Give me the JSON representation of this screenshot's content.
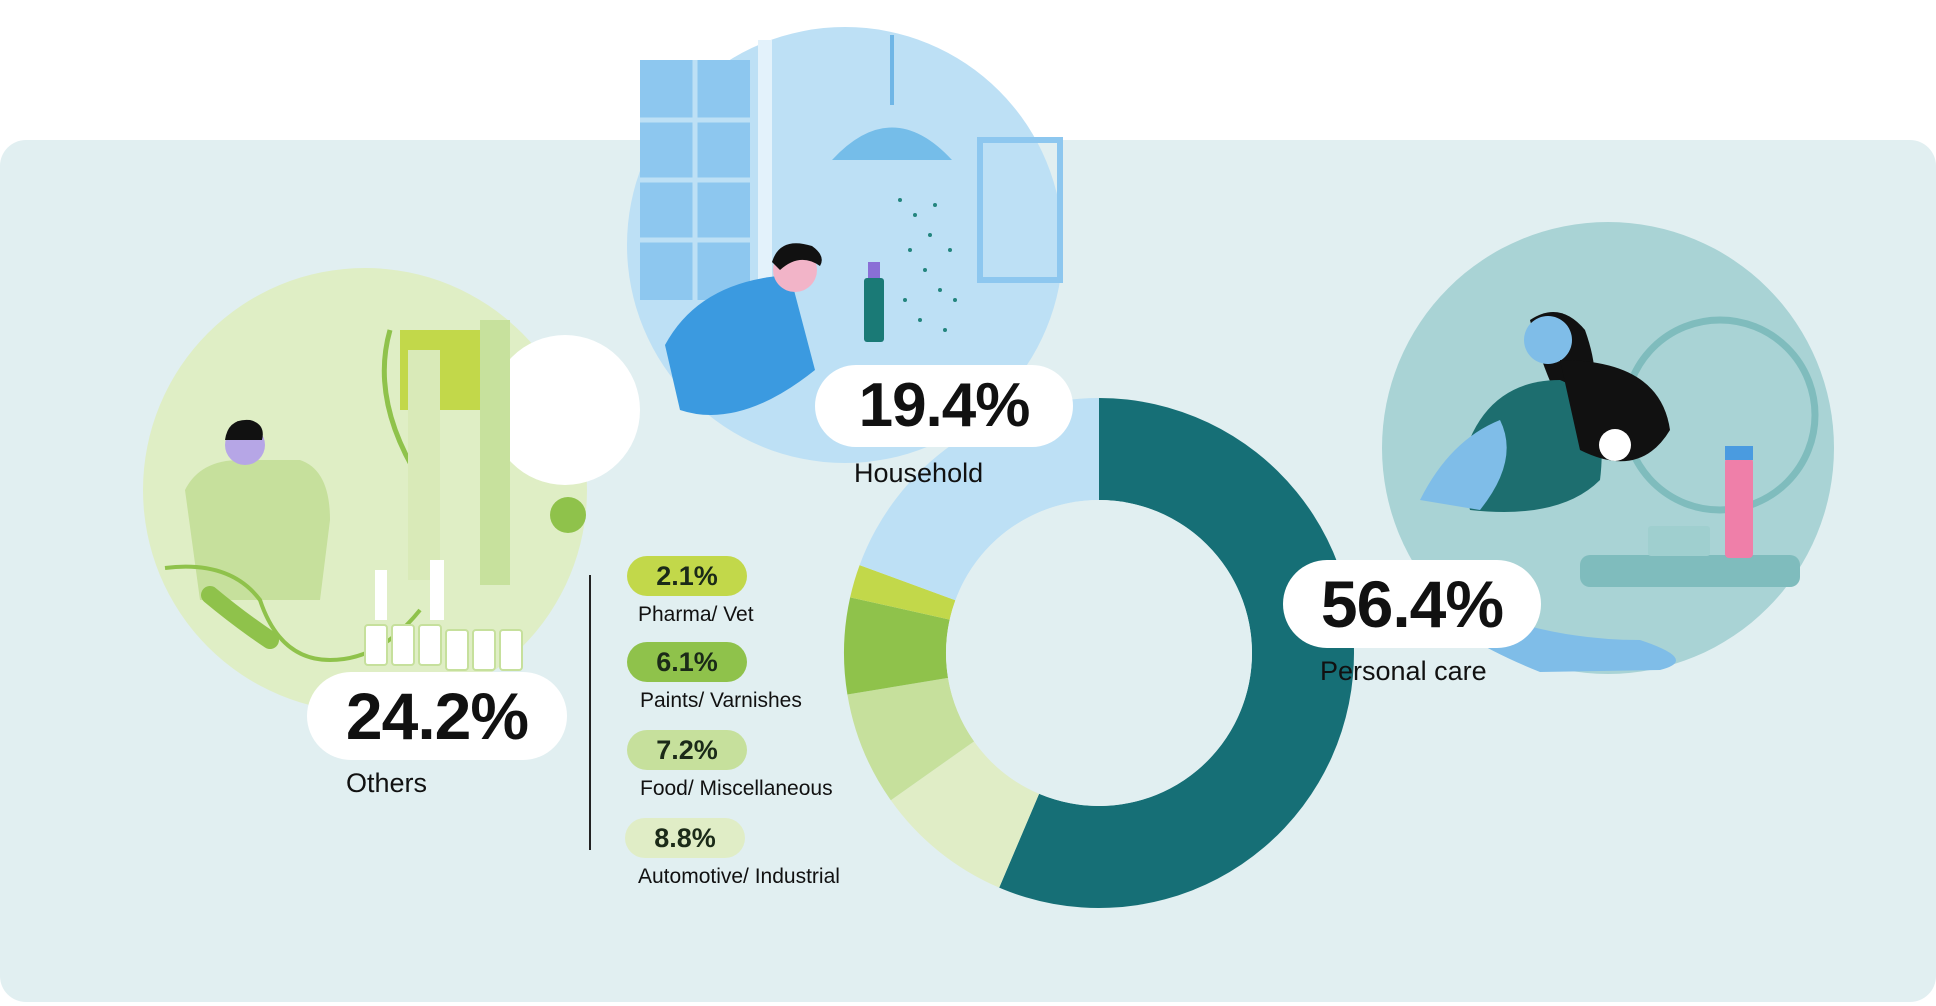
{
  "chart_data": {
    "type": "pie",
    "variant": "donut",
    "segments": [
      {
        "label": "Personal care",
        "value": 56.4,
        "color": "#166f76"
      },
      {
        "label": "Automotive/ Industrial",
        "value": 8.8,
        "color": "#e0edc6"
      },
      {
        "label": "Food/ Miscellaneous",
        "value": 7.2,
        "color": "#c6e09c"
      },
      {
        "label": "Paints/ Varnishes",
        "value": 6.1,
        "color": "#8fc24b"
      },
      {
        "label": "Pharma/ Vet",
        "value": 2.1,
        "color": "#c2d84a"
      },
      {
        "label": "Household",
        "value": 19.4,
        "color": "#bde0f5"
      }
    ],
    "categories": [
      {
        "name": "Personal care",
        "value_text": "56.4%"
      },
      {
        "name": "Household",
        "value_text": "19.4%"
      },
      {
        "name": "Others",
        "value_text": "24.2%"
      }
    ],
    "others_breakdown": [
      {
        "name": "Pharma/ Vet",
        "value_text": "2.1%",
        "color": "#c2d84a"
      },
      {
        "name": "Paints/ Varnishes",
        "value_text": "6.1%",
        "color": "#8fc24b"
      },
      {
        "name": "Food/ Miscellaneous",
        "value_text": "7.2%",
        "color": "#c6e09c"
      },
      {
        "name": "Automotive/ Industrial",
        "value_text": "8.8%",
        "color": "#e0edc6"
      }
    ]
  },
  "illustrations": {
    "household": "person-spraying-cleaner-illustration",
    "personal_care": "woman-brushing-hair-illustration",
    "others": "factory-worker-bottling-line-illustration"
  },
  "colors": {
    "panel": "#e1eff1",
    "household_circle": "#bde0f5",
    "personal_circle": "#a9d3d5",
    "others_circle": "#dfeec5"
  }
}
